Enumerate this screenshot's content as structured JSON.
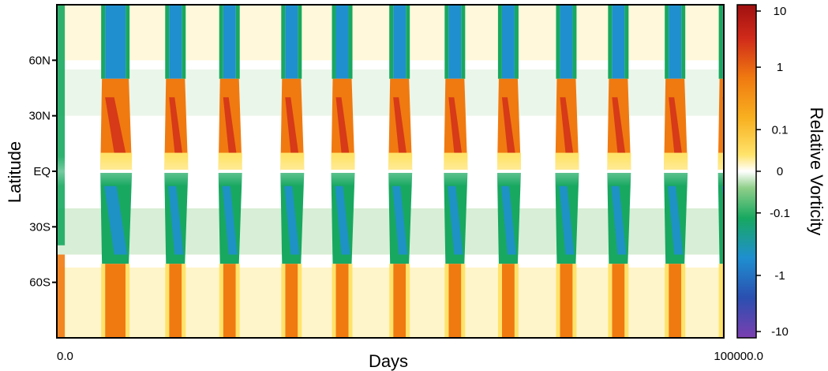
{
  "chart_data": {
    "type": "heatmap",
    "xlabel": "Days",
    "ylabel": "Latitude",
    "colorbar_label": "Relative Vorticity",
    "x_range": [
      0.0,
      100000.0
    ],
    "x_tick_labels": [
      "0.0",
      "100000.0"
    ],
    "y_range": [
      -90,
      90
    ],
    "y_ticks": [
      {
        "value": 60,
        "label": "60N"
      },
      {
        "value": 30,
        "label": "30N"
      },
      {
        "value": 0,
        "label": "EQ"
      },
      {
        "value": -30,
        "label": "30S"
      },
      {
        "value": -60,
        "label": "60S"
      }
    ],
    "colorbar_scale": "symmetric log",
    "colorbar_range": [
      -10,
      10
    ],
    "colorbar_ticks": [
      {
        "value": 10,
        "label": "10"
      },
      {
        "value": 1,
        "label": "1"
      },
      {
        "value": 0.1,
        "label": "0.1"
      },
      {
        "value": 0,
        "label": "0"
      },
      {
        "value": -0.1,
        "label": "-0.1"
      },
      {
        "value": -1,
        "label": "-1"
      },
      {
        "value": -10,
        "label": "-10"
      }
    ],
    "colormap": [
      "#7b3fb0",
      "#2a4fb0",
      "#1f8fd0",
      "#18a860",
      "#8fcf8a",
      "#ffffff",
      "#ffe36a",
      "#f8b020",
      "#f07a10",
      "#d02a1a",
      "#a01010"
    ],
    "cycle_onsets_days": [
      7000,
      16600,
      24700,
      34000,
      41600,
      50200,
      58500,
      66500,
      75200,
      83000,
      91500,
      99600
    ],
    "cycle_period_days": 8300,
    "notes_visible": false
  }
}
